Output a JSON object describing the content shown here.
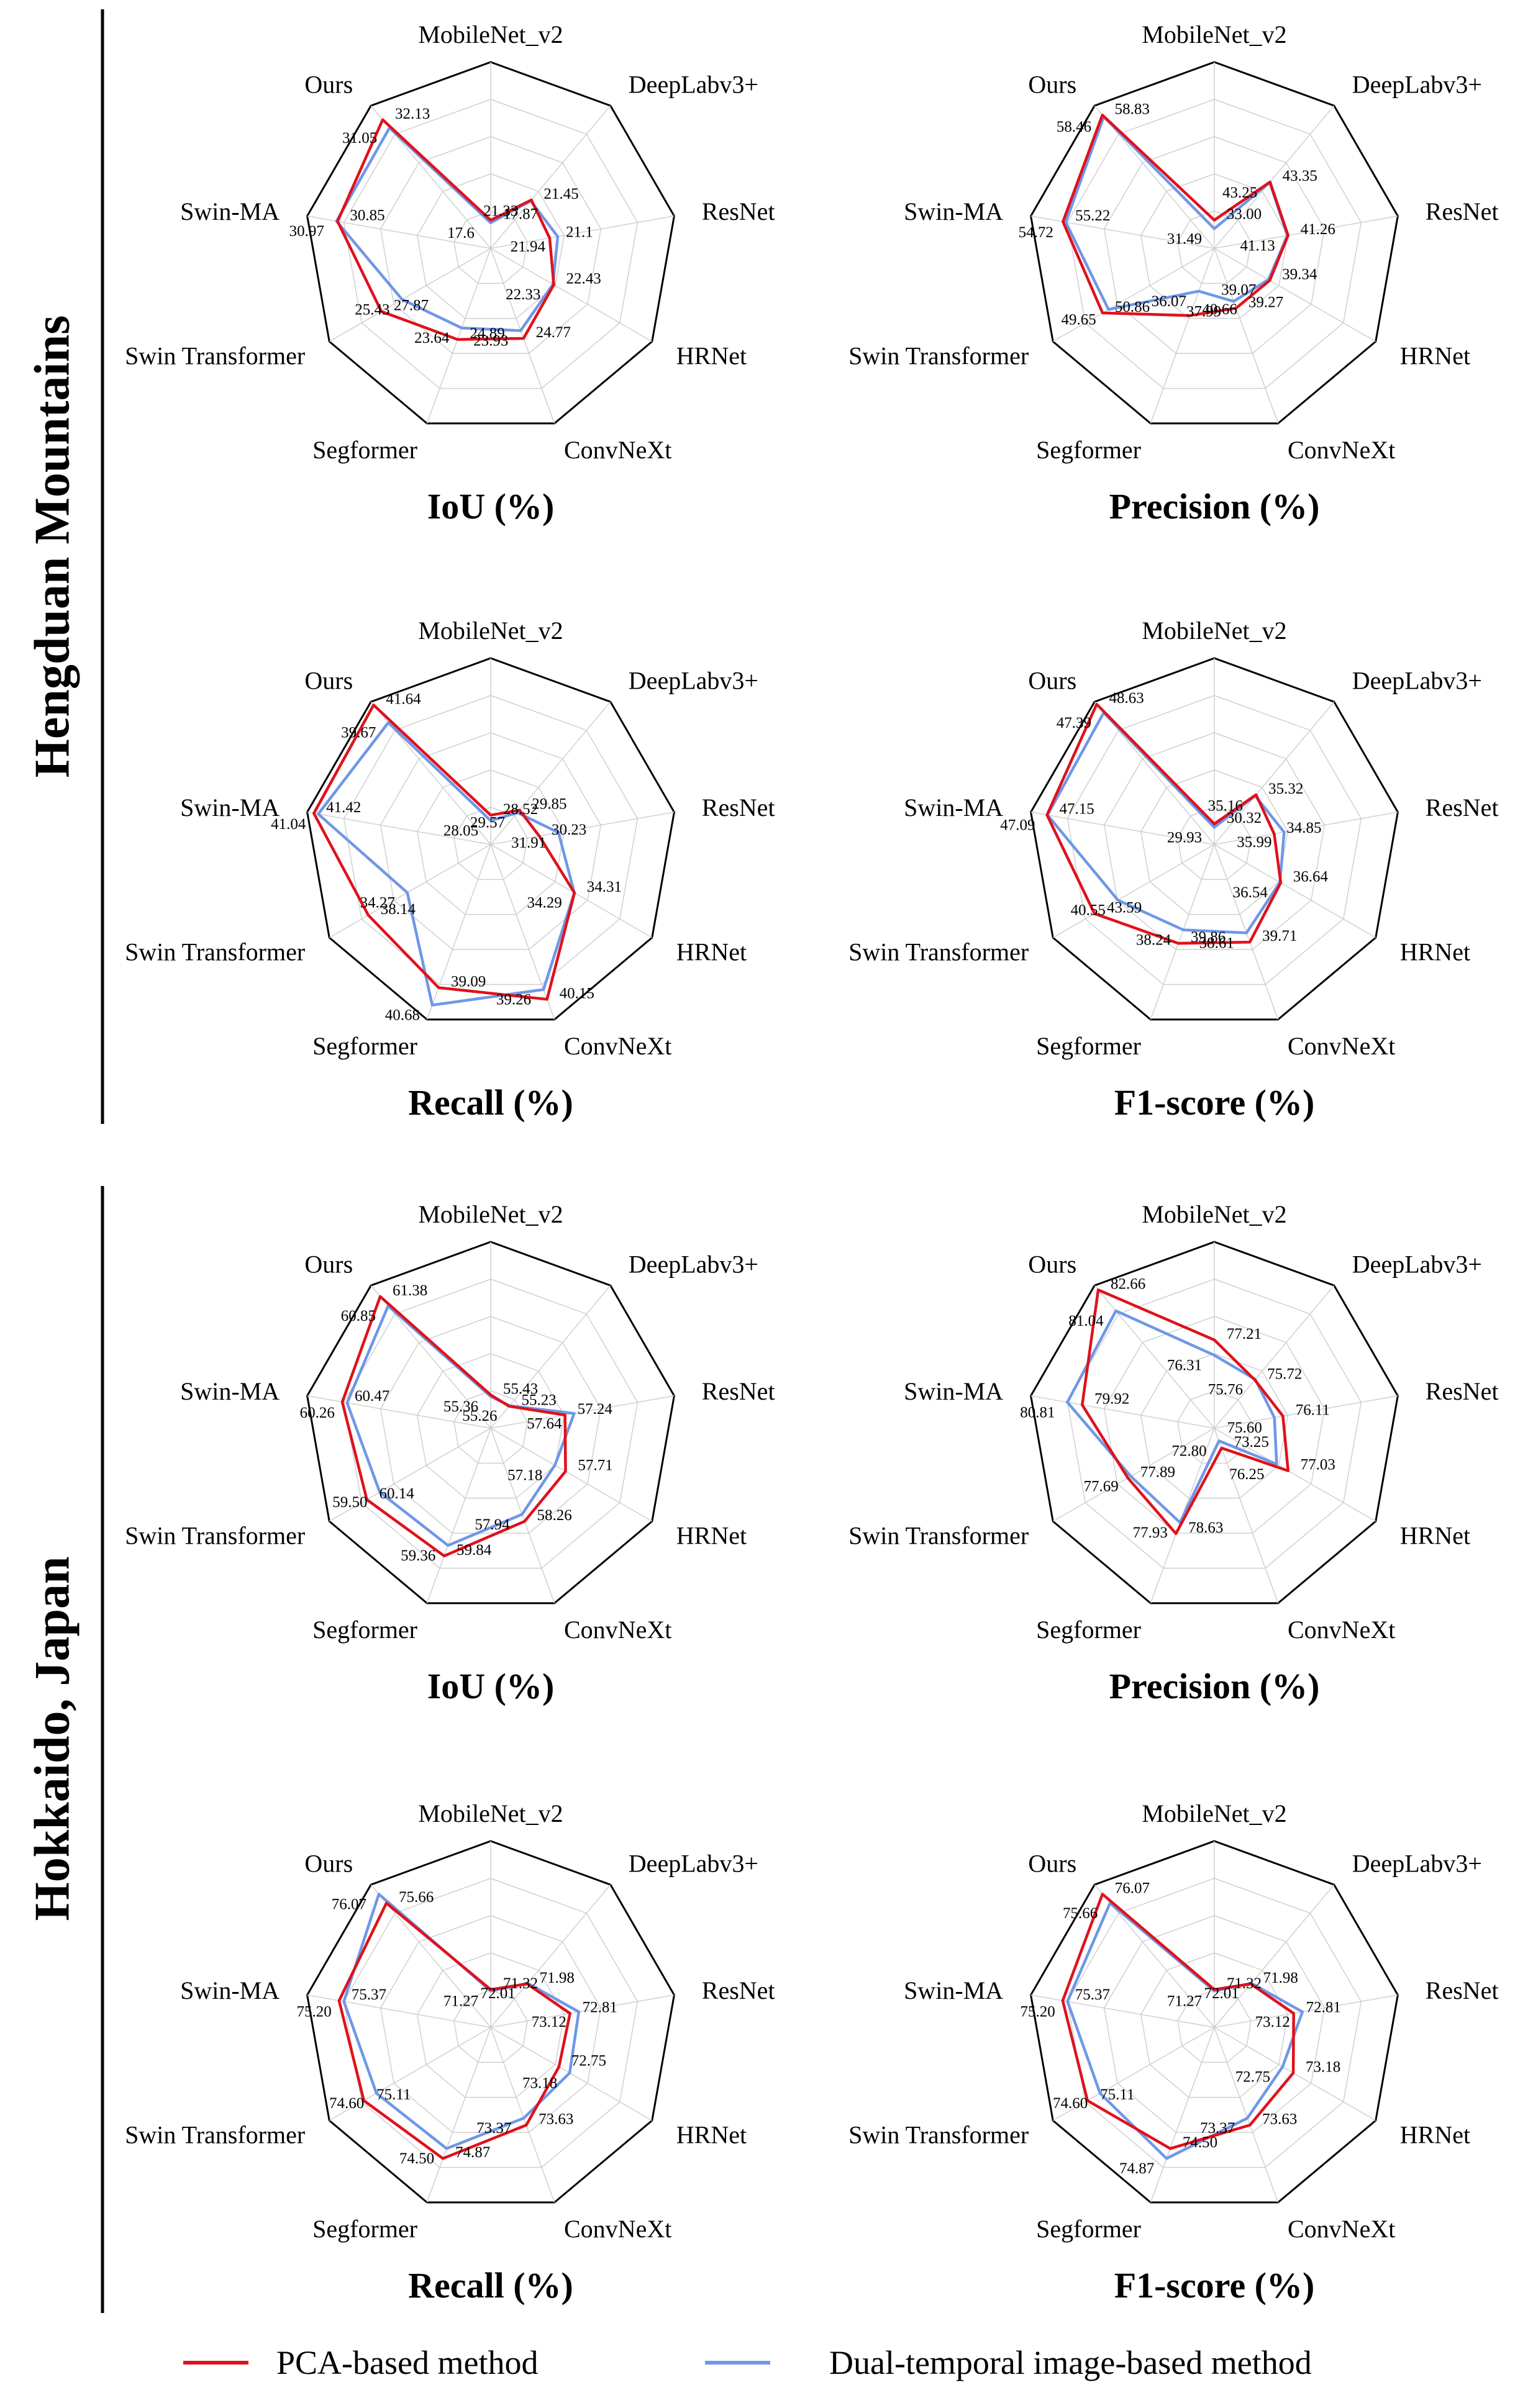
{
  "regions": [
    {
      "name": "Hengduan Mountains"
    },
    {
      "name": "Hokkaido, Japan"
    }
  ],
  "legend": [
    {
      "label": "PCA-based method",
      "color": "#e0111b"
    },
    {
      "label": "Dual-temporal image-based method",
      "color": "#6f97e6"
    }
  ],
  "chart_data": [
    {
      "type": "radar",
      "region": "Hengduan Mountains",
      "title": "IoU (%)",
      "axes": [
        "MobileNet_v2",
        "DeepLabv3+",
        "ResNet",
        "HRNet",
        "ConvNeXt",
        "Segformer",
        "Swin Transformer",
        "Swin-MA",
        "Ours"
      ],
      "range": [
        15,
        34
      ],
      "series": [
        {
          "name": "PCA-based method",
          "values": [
            17.87,
            21.45,
            21.1,
            22.43,
            24.77,
            24.89,
            27.87,
            30.85,
            32.13
          ],
          "labels": [
            "17.87",
            "21.45",
            "21.1",
            "22.43",
            "24.77",
            "24.89",
            "27.87",
            "30.85",
            "32.13"
          ]
        },
        {
          "name": "Dual-temporal image-based method",
          "values": [
            17.6,
            21.33,
            21.94,
            22.33,
            23.93,
            23.64,
            25.43,
            30.97,
            31.05
          ],
          "labels": [
            "17.6",
            "21.33",
            "21.94",
            "22.33",
            "23.93",
            "23.64",
            "25.43",
            "30.97",
            "31.05"
          ]
        }
      ]
    },
    {
      "type": "radar",
      "region": "Hengduan Mountains",
      "title": "Precision (%)",
      "axes": [
        "MobileNet_v2",
        "DeepLabv3+",
        "ResNet",
        "HRNet",
        "ConvNeXt",
        "Segformer",
        "Swin Transformer",
        "Swin-MA",
        "Ours"
      ],
      "range": [
        28,
        61
      ],
      "series": [
        {
          "name": "PCA-based method",
          "values": [
            33.0,
            43.35,
            41.26,
            39.34,
            39.27,
            40.66,
            50.86,
            55.22,
            58.83
          ],
          "labels": [
            "33.00",
            "43.35",
            "41.26",
            "39.34",
            "39.27",
            "40.66",
            "50.86",
            "55.22",
            "58.83"
          ]
        },
        {
          "name": "Dual-temporal image-based method",
          "values": [
            31.49,
            43.25,
            41.13,
            39.07,
            37.99,
            36.07,
            49.65,
            54.72,
            58.46
          ],
          "labels": [
            "31.49",
            "43.25",
            "41.13",
            "39.07",
            "37.99",
            "36.07",
            "49.65",
            "54.72",
            "58.46"
          ]
        }
      ]
    },
    {
      "type": "radar",
      "region": "Hengduan Mountains",
      "title": "Recall (%)",
      "axes": [
        "MobileNet_v2",
        "DeepLabv3+",
        "ResNet",
        "HRNet",
        "ConvNeXt",
        "Segformer",
        "Swin Transformer",
        "Swin-MA",
        "Ours"
      ],
      "range": [
        26,
        42
      ],
      "series": [
        {
          "name": "PCA-based method",
          "values": [
            28.52,
            29.85,
            30.23,
            34.31,
            40.15,
            39.09,
            38.14,
            41.42,
            41.64
          ],
          "labels": [
            "28.52",
            "29.85",
            "30.23",
            "34.31",
            "40.15",
            "39.09",
            "38.14",
            "41.42",
            "41.64"
          ]
        },
        {
          "name": "Dual-temporal image-based method",
          "values": [
            28.05,
            29.57,
            31.91,
            34.29,
            39.26,
            40.68,
            34.27,
            41.04,
            39.67
          ],
          "labels": [
            "28.05",
            "29.57",
            "31.91",
            "34.29",
            "39.26",
            "40.68",
            "34.27",
            "41.04",
            "39.67"
          ]
        }
      ]
    },
    {
      "type": "radar",
      "region": "Hengduan Mountains",
      "title": "F1-score (%)",
      "axes": [
        "MobileNet_v2",
        "DeepLabv3+",
        "ResNet",
        "HRNet",
        "ConvNeXt",
        "Segformer",
        "Swin Transformer",
        "Swin-MA",
        "Ours"
      ],
      "range": [
        28,
        49
      ],
      "series": [
        {
          "name": "PCA-based method",
          "values": [
            30.32,
            35.32,
            34.85,
            36.64,
            39.71,
            39.86,
            43.59,
            47.15,
            48.63
          ],
          "labels": [
            "30.32",
            "35.32",
            "34.85",
            "36.64",
            "39.71",
            "39.86",
            "43.59",
            "47.15",
            "48.63"
          ]
        },
        {
          "name": "Dual-temporal image-based method",
          "values": [
            29.93,
            35.16,
            35.99,
            36.54,
            38.61,
            38.24,
            40.55,
            47.09,
            47.39
          ],
          "labels": [
            "29.93",
            "35.16",
            "35.99",
            "36.54",
            "38.61",
            "38.24",
            "40.55",
            "47.09",
            "47.39"
          ]
        }
      ]
    },
    {
      "type": "radar",
      "region": "Hokkaido, Japan",
      "title": "IoU (%)",
      "axes": [
        "MobileNet_v2",
        "DeepLabv3+",
        "ResNet",
        "HRNet",
        "ConvNeXt",
        "Segformer",
        "Swin Transformer",
        "Swin-MA",
        "Ours"
      ],
      "range": [
        54,
        62
      ],
      "series": [
        {
          "name": "PCA-based method",
          "values": [
            55.43,
            55.23,
            57.24,
            57.71,
            58.26,
            59.84,
            60.14,
            60.47,
            61.38
          ],
          "labels": [
            "55.43",
            "55.23",
            "57.24",
            "57.71",
            "58.26",
            "59.84",
            "60.14",
            "60.47",
            "61.38"
          ]
        },
        {
          "name": "Dual-temporal image-based method",
          "values": [
            55.36,
            55.26,
            57.64,
            57.18,
            57.94,
            59.36,
            59.5,
            60.26,
            60.85
          ],
          "labels": [
            "55.36",
            "55.26",
            "57.64",
            "57.18",
            "57.94",
            "59.36",
            "59.50",
            "60.26",
            "60.85"
          ]
        }
      ]
    },
    {
      "type": "radar",
      "region": "Hokkaido, Japan",
      "title": "Precision (%)",
      "axes": [
        "MobileNet_v2",
        "DeepLabv3+",
        "ResNet",
        "HRNet",
        "ConvNeXt",
        "Segformer",
        "Swin Transformer",
        "Swin-MA",
        "Ours"
      ],
      "range": [
        72,
        83
      ],
      "series": [
        {
          "name": "PCA-based method",
          "values": [
            77.21,
            75.72,
            76.11,
            77.03,
            73.25,
            78.63,
            77.89,
            79.92,
            82.66
          ],
          "labels": [
            "77.21",
            "75.72",
            "76.11",
            "77.03",
            "73.25",
            "78.63",
            "77.89",
            "79.92",
            "82.66"
          ]
        },
        {
          "name": "Dual-temporal image-based method",
          "values": [
            76.31,
            75.76,
            75.6,
            76.25,
            72.8,
            77.93,
            77.69,
            80.81,
            81.04
          ],
          "labels": [
            "76.31",
            "75.76",
            "75.60",
            "76.25",
            "72.80",
            "77.93",
            "77.69",
            "80.81",
            "81.04"
          ]
        }
      ]
    },
    {
      "type": "radar",
      "region": "Hokkaido, Japan",
      "title": "Recall (%)",
      "axes": [
        "MobileNet_v2",
        "DeepLabv3+",
        "ResNet",
        "HRNet",
        "ConvNeXt",
        "Segformer",
        "Swin Transformer",
        "Swin-MA",
        "Ours"
      ],
      "range": [
        70,
        76.5
      ],
      "series": [
        {
          "name": "PCA-based method",
          "values": [
            71.32,
            71.98,
            72.81,
            72.75,
            73.63,
            74.87,
            75.11,
            75.37,
            75.66
          ],
          "labels": [
            "71.32",
            "71.98",
            "72.81",
            "72.75",
            "73.63",
            "74.87",
            "75.11",
            "75.37",
            "75.66"
          ]
        },
        {
          "name": "Dual-temporal image-based method",
          "values": [
            71.27,
            72.01,
            73.12,
            73.18,
            73.37,
            74.5,
            74.6,
            75.2,
            76.07
          ],
          "labels": [
            "71.27",
            "72.01",
            "73.12",
            "73.18",
            "73.37",
            "74.50",
            "74.60",
            "75.20",
            "76.07"
          ]
        }
      ]
    },
    {
      "type": "radar",
      "region": "Hokkaido, Japan",
      "title": "F1-score (%)",
      "axes": [
        "MobileNet_v2",
        "DeepLabv3+",
        "ResNet",
        "HRNet",
        "ConvNeXt",
        "Segformer",
        "Swin Transformer",
        "Swin-MA",
        "Ours"
      ],
      "range": [
        70,
        76.5
      ],
      "series": [
        {
          "name": "PCA-based method",
          "values": [
            71.32,
            71.98,
            72.81,
            73.18,
            73.63,
            74.5,
            75.11,
            75.37,
            76.07
          ],
          "labels": [
            "71.32",
            "71.98",
            "72.81",
            "73.18",
            "73.63",
            "74.50",
            "75.11",
            "75.37",
            "76.07"
          ]
        },
        {
          "name": "Dual-temporal image-based method",
          "values": [
            71.27,
            72.01,
            73.12,
            72.75,
            73.37,
            74.87,
            74.6,
            75.2,
            75.66
          ],
          "labels": [
            "71.27",
            "72.01",
            "73.12",
            "72.75",
            "73.37",
            "74.87",
            "74.60",
            "75.20",
            "75.66"
          ]
        }
      ]
    }
  ]
}
